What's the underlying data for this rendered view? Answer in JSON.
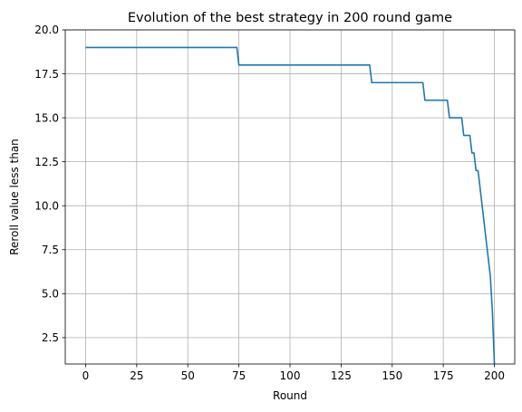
{
  "chart_data": {
    "type": "line",
    "title": "Evolution of the best strategy in 200 round game",
    "xlabel": "Round",
    "ylabel": "Reroll value less than",
    "xlim": [
      -9.95,
      209.95
    ],
    "ylim": [
      1.0,
      20.0
    ],
    "xticks": [
      0,
      25,
      50,
      75,
      100,
      125,
      150,
      175,
      200
    ],
    "yticks": [
      2.5,
      5.0,
      7.5,
      10.0,
      12.5,
      15.0,
      17.5,
      20.0
    ],
    "xtick_labels": [
      "0",
      "25",
      "50",
      "75",
      "100",
      "125",
      "150",
      "175",
      "200"
    ],
    "ytick_labels": [
      "2.5",
      "5.0",
      "7.5",
      "10.0",
      "12.5",
      "15.0",
      "17.5",
      "20.0"
    ],
    "grid": true,
    "line_color": "#1f77b4",
    "series": [
      {
        "x": [
          0,
          74,
          75,
          139,
          140,
          165,
          166,
          177,
          178,
          184,
          185,
          188,
          189,
          190,
          191,
          192,
          193,
          194,
          195,
          196,
          197,
          198,
          199,
          200
        ],
        "y": [
          19,
          19,
          18,
          18,
          17,
          17,
          16,
          16,
          15,
          15,
          14,
          14,
          13,
          13,
          12,
          12,
          11,
          10,
          9,
          8,
          7,
          6,
          4,
          1
        ]
      }
    ]
  }
}
